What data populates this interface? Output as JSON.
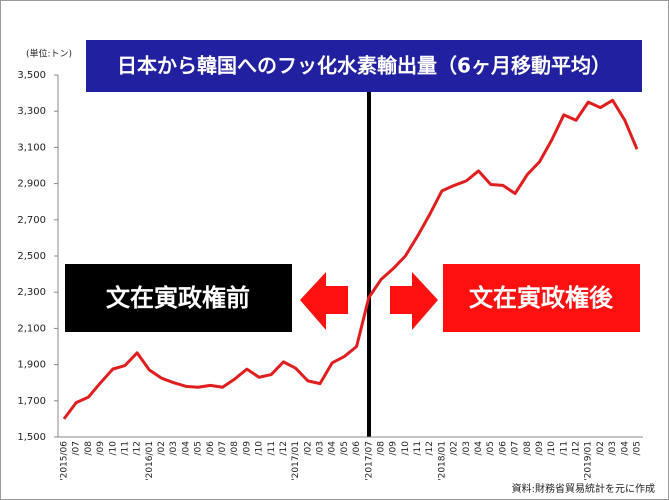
{
  "chart_data": {
    "type": "line",
    "title": "日本から韓国へのフッ化水素輸出量（6ヶ月移動平均）",
    "y_unit": "(単位:トン)",
    "annotations": {
      "before": "文在寅政権前",
      "after": "文在寅政権後"
    },
    "source": "資料:財務省貿易統計を元に作成",
    "categories": [
      "'2015/06",
      "/07",
      "/08",
      "/09",
      "/10",
      "/11",
      "/12",
      "'2016/01",
      "/02",
      "/03",
      "/04",
      "/05",
      "/06",
      "/07",
      "/08",
      "/09",
      "/10",
      "/11",
      "/12",
      "'2017/01",
      "/02",
      "/03",
      "/04",
      "/05",
      "/06",
      "'2017/07",
      "/08",
      "/09",
      "/10",
      "/11",
      "/12",
      "'2018/01",
      "/02",
      "/03",
      "/04",
      "/05",
      "/06",
      "/07",
      "/08",
      "/09",
      "/10",
      "/11",
      "/12",
      "'2019/01",
      "/02",
      "/03",
      "/04",
      "/05"
    ],
    "values": [
      1600,
      1690,
      1720,
      1800,
      1875,
      1895,
      1965,
      1870,
      1825,
      1800,
      1780,
      1775,
      1785,
      1775,
      1820,
      1875,
      1830,
      1845,
      1915,
      1880,
      1810,
      1795,
      1910,
      1945,
      2000,
      2270,
      2370,
      2430,
      2500,
      2610,
      2730,
      2860,
      2890,
      2915,
      2970,
      2895,
      2890,
      2845,
      2950,
      3020,
      3140,
      3280,
      3250,
      3350,
      3320,
      3360,
      3250,
      3090
    ],
    "color": "#e01e1e",
    "ylim": [
      1500,
      3500
    ],
    "yticks": [
      {
        "value": 1500,
        "label": "1,500"
      },
      {
        "value": 1700,
        "label": "1,700"
      },
      {
        "value": 1900,
        "label": "1,900"
      },
      {
        "value": 2100,
        "label": "2,100"
      },
      {
        "value": 2300,
        "label": "2,300"
      },
      {
        "value": 2500,
        "label": "2,500"
      },
      {
        "value": 2700,
        "label": "2,700"
      },
      {
        "value": 2900,
        "label": "2,900"
      },
      {
        "value": 3100,
        "label": "3,100"
      },
      {
        "value": 3300,
        "label": "3,300"
      },
      {
        "value": 3500,
        "label": "3,500"
      }
    ],
    "grid": false
  }
}
